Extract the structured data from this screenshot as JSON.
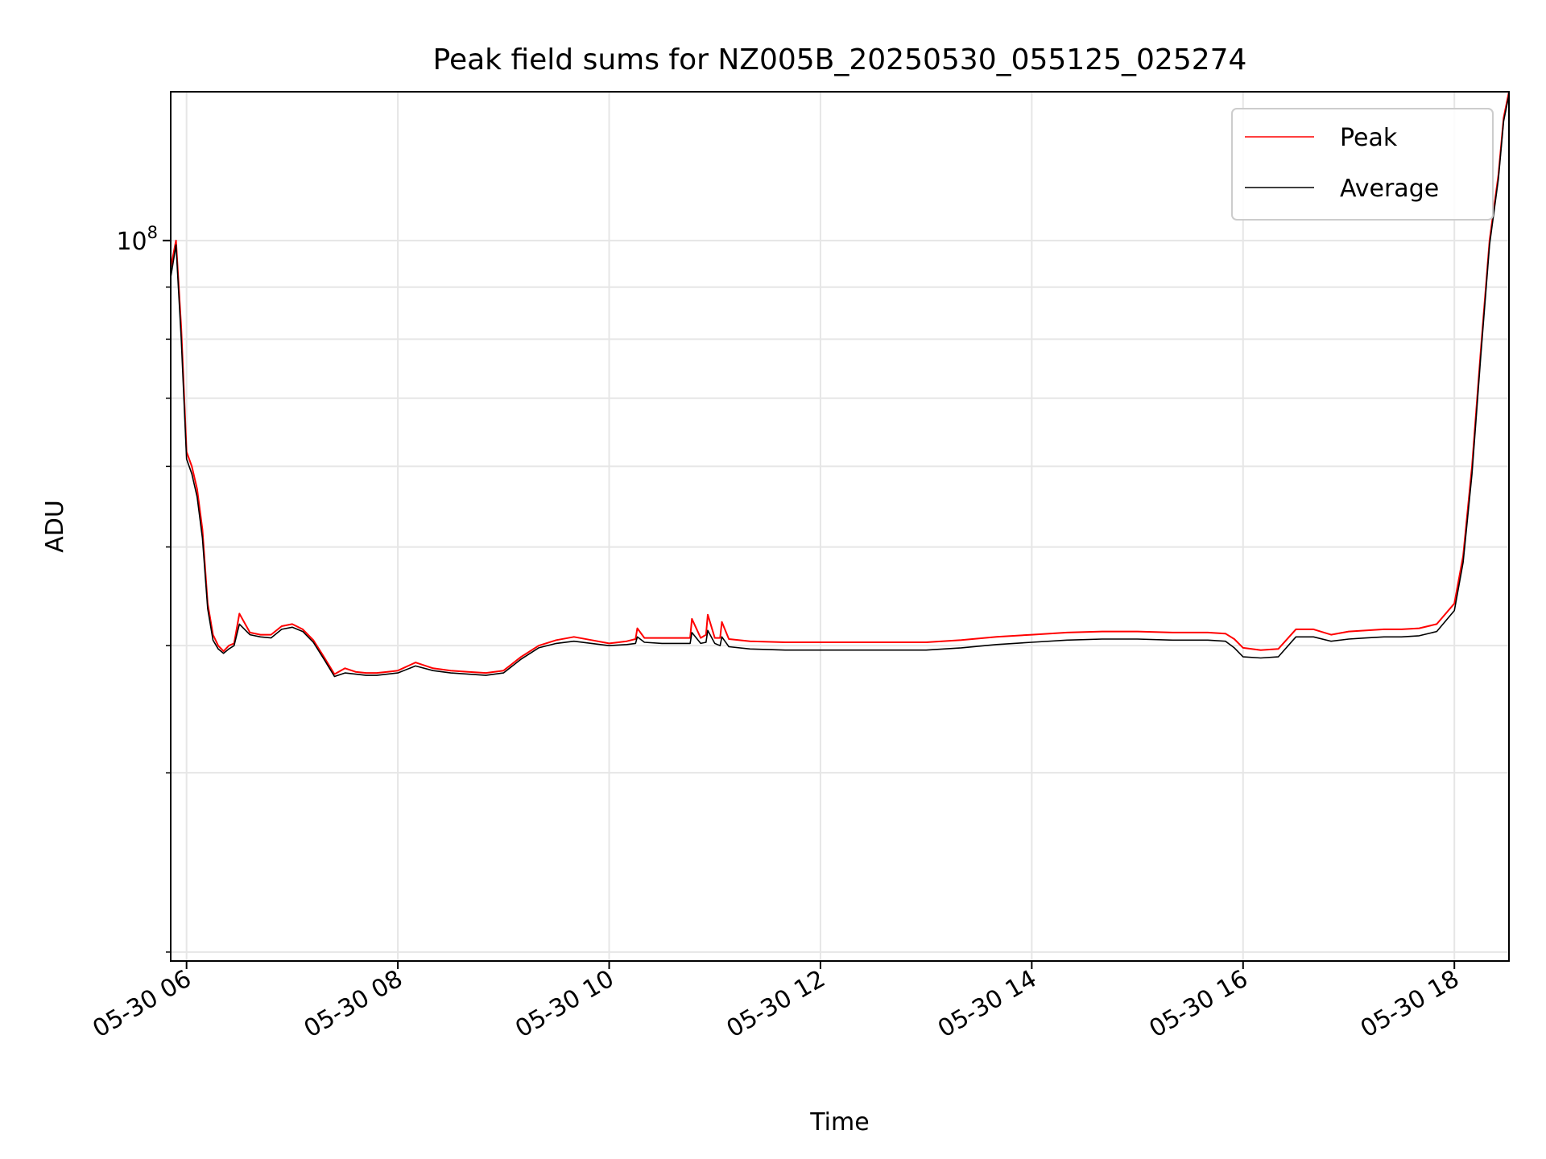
{
  "chart_data": {
    "type": "line",
    "title": "Peak field sums for NZ005B_20250530_055125_025274",
    "xlabel": "Time",
    "ylabel": "ADU",
    "yscale": "log",
    "grid": true,
    "legend_position": "top-right",
    "x_range": [
      "2025-05-30 05:51",
      "2025-05-30 18:31"
    ],
    "y_range": [
      19600000,
      140000000
    ],
    "x_tick_labels": [
      "05-30 06",
      "05-30 08",
      "05-30 10",
      "05-30 12",
      "05-30 14",
      "05-30 16",
      "05-30 18"
    ],
    "x_tick_values": [
      "2025-05-30 06:00",
      "2025-05-30 08:00",
      "2025-05-30 10:00",
      "2025-05-30 12:00",
      "2025-05-30 14:00",
      "2025-05-30 16:00",
      "2025-05-30 18:00"
    ],
    "y_tick_labels": [
      {
        "base": "10",
        "exp": "8"
      }
    ],
    "y_tick_values": [
      100000000
    ],
    "y_minor_tick_values": [
      20000000,
      30000000,
      40000000,
      50000000,
      60000000,
      70000000,
      80000000,
      90000000
    ],
    "series": [
      {
        "name": "Peak",
        "color": "#ff0000",
        "x": [
          "05:51",
          "05:54",
          "05:57",
          "06:00",
          "06:03",
          "06:06",
          "06:09",
          "06:12",
          "06:15",
          "06:18",
          "06:21",
          "06:24",
          "06:27",
          "06:30",
          "06:36",
          "06:42",
          "06:48",
          "06:54",
          "07:00",
          "07:06",
          "07:12",
          "07:18",
          "07:24",
          "07:30",
          "07:36",
          "07:42",
          "07:48",
          "07:54",
          "08:00",
          "08:10",
          "08:20",
          "08:30",
          "08:40",
          "08:50",
          "09:00",
          "09:10",
          "09:20",
          "09:30",
          "09:40",
          "09:50",
          "10:00",
          "10:10",
          "10:15",
          "10:16",
          "10:20",
          "10:30",
          "10:40",
          "10:46",
          "10:47",
          "10:52",
          "10:55",
          "10:56",
          "11:00",
          "11:03",
          "11:04",
          "11:08",
          "11:20",
          "11:40",
          "12:00",
          "12:20",
          "12:40",
          "13:00",
          "13:20",
          "13:40",
          "14:00",
          "14:20",
          "14:40",
          "15:00",
          "15:20",
          "15:40",
          "15:50",
          "15:55",
          "16:00",
          "16:10",
          "16:20",
          "16:30",
          "16:40",
          "16:50",
          "17:00",
          "17:10",
          "17:20",
          "17:30",
          "17:40",
          "17:50",
          "18:00",
          "18:05",
          "18:10",
          "18:15",
          "18:20",
          "18:25",
          "18:28",
          "18:31"
        ],
        "y": [
          94000000,
          100000000,
          82000000,
          62000000,
          60000000,
          57000000,
          52000000,
          44000000,
          41000000,
          40000000,
          39500000,
          40000000,
          40200000,
          43000000,
          41200000,
          41000000,
          41000000,
          41800000,
          42000000,
          41500000,
          40500000,
          39000000,
          37500000,
          38000000,
          37700000,
          37600000,
          37600000,
          37700000,
          37800000,
          38500000,
          38000000,
          37800000,
          37700000,
          37600000,
          37800000,
          39000000,
          40000000,
          40500000,
          40800000,
          40500000,
          40200000,
          40400000,
          40600000,
          41600000,
          40700000,
          40700000,
          40700000,
          40700000,
          42500000,
          40700000,
          41000000,
          42900000,
          40700000,
          40700000,
          42200000,
          40600000,
          40400000,
          40300000,
          40300000,
          40300000,
          40300000,
          40300000,
          40500000,
          40800000,
          41000000,
          41200000,
          41300000,
          41300000,
          41200000,
          41200000,
          41100000,
          40600000,
          39800000,
          39600000,
          39700000,
          41500000,
          41500000,
          41000000,
          41300000,
          41400000,
          41500000,
          41500000,
          41600000,
          42000000,
          44000000,
          49000000,
          60000000,
          78000000,
          100000000,
          116000000,
          132000000,
          140000000
        ]
      },
      {
        "name": "Average",
        "color": "#000000",
        "x": [
          "05:51",
          "05:54",
          "05:57",
          "06:00",
          "06:03",
          "06:06",
          "06:09",
          "06:12",
          "06:15",
          "06:18",
          "06:21",
          "06:24",
          "06:27",
          "06:30",
          "06:36",
          "06:42",
          "06:48",
          "06:54",
          "07:00",
          "07:06",
          "07:12",
          "07:18",
          "07:24",
          "07:30",
          "07:36",
          "07:42",
          "07:48",
          "07:54",
          "08:00",
          "08:10",
          "08:20",
          "08:30",
          "08:40",
          "08:50",
          "09:00",
          "09:10",
          "09:20",
          "09:30",
          "09:40",
          "09:50",
          "10:00",
          "10:10",
          "10:15",
          "10:16",
          "10:20",
          "10:30",
          "10:40",
          "10:46",
          "10:47",
          "10:52",
          "10:55",
          "10:56",
          "11:00",
          "11:03",
          "11:04",
          "11:08",
          "11:20",
          "11:40",
          "12:00",
          "12:20",
          "12:40",
          "13:00",
          "13:20",
          "13:40",
          "14:00",
          "14:20",
          "14:40",
          "15:00",
          "15:20",
          "15:40",
          "15:50",
          "15:55",
          "16:00",
          "16:10",
          "16:20",
          "16:30",
          "16:40",
          "16:50",
          "17:00",
          "17:10",
          "17:20",
          "17:30",
          "17:40",
          "17:50",
          "18:00",
          "18:05",
          "18:10",
          "18:15",
          "18:20",
          "18:25",
          "18:28",
          "18:31"
        ],
        "y": [
          92000000,
          99000000,
          80000000,
          61000000,
          59000000,
          56000000,
          51000000,
          43500000,
          40500000,
          39700000,
          39300000,
          39700000,
          40000000,
          42000000,
          41000000,
          40800000,
          40700000,
          41500000,
          41700000,
          41300000,
          40300000,
          38800000,
          37300000,
          37600000,
          37500000,
          37400000,
          37400000,
          37500000,
          37600000,
          38200000,
          37800000,
          37600000,
          37500000,
          37400000,
          37600000,
          38800000,
          39800000,
          40200000,
          40400000,
          40200000,
          40000000,
          40100000,
          40200000,
          40800000,
          40300000,
          40200000,
          40200000,
          40200000,
          41200000,
          40200000,
          40300000,
          41400000,
          40200000,
          40000000,
          40800000,
          39900000,
          39700000,
          39600000,
          39600000,
          39600000,
          39600000,
          39600000,
          39800000,
          40100000,
          40300000,
          40500000,
          40600000,
          40600000,
          40500000,
          40500000,
          40400000,
          39800000,
          39000000,
          38900000,
          39000000,
          40800000,
          40800000,
          40400000,
          40600000,
          40700000,
          40800000,
          40800000,
          40900000,
          41300000,
          43300000,
          48300000,
          59000000,
          77000000,
          99000000,
          115000000,
          131000000,
          139000000
        ]
      }
    ]
  }
}
